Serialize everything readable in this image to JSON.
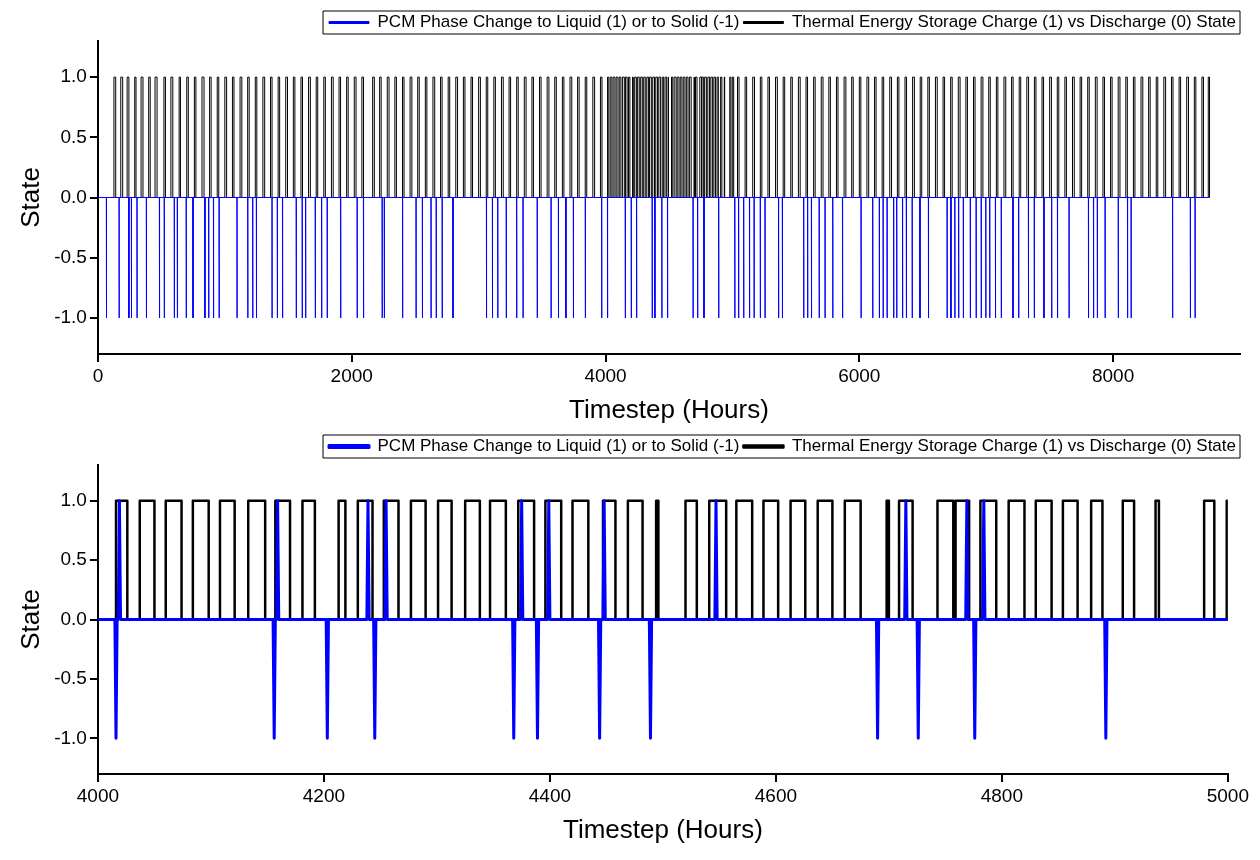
{
  "chart_data": [
    {
      "type": "line",
      "xlabel": "Timestep (Hours)",
      "ylabel": "State",
      "xlim": [
        0,
        9000
      ],
      "xticks": [
        0,
        2000,
        4000,
        6000,
        8000
      ],
      "ylim": [
        -1.3,
        1.3
      ],
      "yticks": [
        {
          "value": -1,
          "label": "-1.0"
        },
        {
          "value": -0.5,
          "label": "-0.5"
        },
        {
          "value": 0,
          "label": "0.0"
        },
        {
          "value": 0.5,
          "label": "0.5"
        },
        {
          "value": 1,
          "label": "1.0"
        }
      ],
      "legend": "top right",
      "series": [
        {
          "name": "PCM Phase Change to Liquid (1) or to Solid (-1)",
          "color": "#0000ff",
          "x": [
            0,
            66,
            67,
            68,
            166,
            167,
            168,
            243,
            244,
            245,
            263,
            264,
            265,
            307,
            308,
            309,
            381,
            382,
            383,
            484,
            485,
            486,
            522,
            523,
            524,
            601,
            602,
            603,
            625,
            626,
            627,
            695,
            696,
            697,
            748,
            749,
            750,
            842,
            843,
            844,
            872,
            873,
            874,
            910,
            911,
            912,
            954,
            955,
            956,
            1095,
            1096,
            1097,
            1180,
            1181,
            1182,
            1219,
            1220,
            1221,
            1248,
            1249,
            1250,
            1371,
            1372,
            1373,
            1413,
            1414,
            1415,
            1454,
            1455,
            1456,
            1562,
            1563,
            1564,
            1609,
            1610,
            1611,
            1636,
            1637,
            1638,
            1712,
            1713,
            1714,
            1762,
            1763,
            1764,
            1806,
            1807,
            1808,
            1912,
            1913,
            1914,
            2042,
            2043,
            2044,
            2092,
            2093,
            2094,
            2239,
            2240,
            2241,
            2256,
            2257,
            2258,
            2400,
            2401,
            2402,
            2506,
            2507,
            2508,
            2556,
            2557,
            2558,
            2624,
            2625,
            2626,
            2665,
            2666,
            2667,
            2712,
            2713,
            2714,
            2797,
            2798,
            2799,
            3061,
            3062,
            3063,
            3108,
            3109,
            3110,
            3150,
            3151,
            3152,
            3217,
            3218,
            3219,
            3299,
            3300,
            3301,
            3349,
            3350,
            3351,
            3461,
            3462,
            3463,
            3570,
            3571,
            3572,
            3628,
            3629,
            3630,
            3687,
            3688,
            3689,
            3746,
            3747,
            3748,
            3840,
            3841,
            3842,
            3969,
            3970,
            3971,
            4015,
            4016,
            4017,
            4155,
            4156,
            4157,
            4202,
            4203,
            4204,
            4244,
            4245,
            4246,
            4367,
            4368,
            4369,
            4388,
            4389,
            4390,
            4443,
            4444,
            4445,
            4488,
            4489,
            4490,
            4689,
            4690,
            4691,
            4725,
            4726,
            4727,
            4775,
            4776,
            4777,
            4891,
            4892,
            4893,
            5018,
            5019,
            5020,
            5048,
            5049,
            5050,
            5088,
            5089,
            5090,
            5134,
            5135,
            5136,
            5170,
            5171,
            5172,
            5219,
            5220,
            5221,
            5256,
            5257,
            5258,
            5363,
            5364,
            5365,
            5393,
            5394,
            5395,
            5561,
            5562,
            5563,
            5592,
            5593,
            5594,
            5622,
            5623,
            5624,
            5683,
            5684,
            5685,
            5729,
            5730,
            5731,
            5790,
            5791,
            5792,
            5867,
            5868,
            5869,
            6013,
            6014,
            6015,
            6105,
            6106,
            6107,
            6157,
            6158,
            6159,
            6187,
            6188,
            6189,
            6218,
            6219,
            6220,
            6270,
            6271,
            6272,
            6294,
            6295,
            6296,
            6340,
            6341,
            6342,
            6370,
            6371,
            6372,
            6416,
            6417,
            6418,
            6477,
            6478,
            6479,
            6544,
            6545,
            6546,
            6691,
            6692,
            6693,
            6721,
            6722,
            6723,
            6752,
            6753,
            6754,
            6782,
            6783,
            6784,
            6819,
            6820,
            6821,
            6874,
            6875,
            6876,
            6920,
            6921,
            6922,
            6960,
            6961,
            6962,
            6996,
            6997,
            6998,
            7027,
            7028,
            7029,
            7072,
            7073,
            7074,
            7118,
            7119,
            7120,
            7210,
            7211,
            7212,
            7255,
            7256,
            7257,
            7332,
            7333,
            7334,
            7378,
            7379,
            7380,
            7454,
            7455,
            7456,
            7515,
            7516,
            7517,
            7561,
            7562,
            7563,
            7652,
            7653,
            7654,
            7805,
            7806,
            7807,
            7845,
            7846,
            7847,
            7875,
            7876,
            7877,
            7936,
            7937,
            7938,
            8040,
            8041,
            8042,
            8113,
            8114,
            8115,
            8141,
            8142,
            8143,
            8468,
            8469,
            8470,
            8608,
            8609,
            8610,
            8645,
            8646,
            8647,
            8760
          ],
          "values": [
            0,
            0,
            -1,
            0,
            0,
            -1,
            0,
            0,
            -1,
            0,
            0,
            -1,
            0,
            0,
            -1,
            0,
            0,
            -1,
            0,
            0,
            -1,
            0,
            0,
            -1,
            0,
            0,
            -1,
            0,
            0,
            -1,
            0,
            0,
            -1,
            0,
            0,
            -1,
            0,
            0,
            -1,
            0,
            0,
            -1,
            0,
            0,
            -1,
            0,
            0,
            -1,
            0,
            0,
            -1,
            0,
            0,
            -1,
            0,
            0,
            -1,
            0,
            0,
            -1,
            0,
            0,
            -1,
            0,
            0,
            -1,
            0,
            0,
            -1,
            0,
            0,
            -1,
            0,
            0,
            -1,
            0,
            0,
            -1,
            0,
            0,
            -1,
            0,
            0,
            -1,
            0,
            0,
            -1,
            0,
            0,
            -1,
            0,
            0,
            -1,
            0,
            0,
            -1,
            0,
            0,
            -1,
            0,
            0,
            -1,
            0,
            0,
            -1,
            0,
            0,
            -1,
            0,
            0,
            -1,
            0,
            0,
            -1,
            0,
            0,
            -1,
            0,
            0,
            -1,
            0,
            0,
            -1,
            0,
            0,
            -1,
            0,
            0,
            -1,
            0,
            0,
            -1,
            0,
            0,
            -1,
            0,
            0,
            -1,
            0,
            0,
            -1,
            0,
            0,
            -1,
            0,
            0,
            -1,
            0,
            0,
            -1,
            0,
            0,
            -1,
            0,
            0,
            -1,
            0,
            0,
            -1,
            0,
            0,
            -1,
            0,
            0,
            -1,
            0,
            0,
            -1,
            0,
            0,
            -1,
            0,
            0,
            -1,
            0,
            0,
            -1,
            0,
            0,
            -1,
            0,
            0,
            -1,
            0,
            0,
            -1,
            0,
            0,
            -1,
            0,
            0,
            -1,
            0,
            0,
            -1,
            0,
            0,
            -1,
            0,
            0,
            -1,
            0,
            0,
            -1,
            0,
            0,
            -1,
            0,
            0,
            -1,
            0,
            0,
            -1,
            0,
            0,
            -1,
            0,
            0,
            -1,
            0,
            0,
            -1,
            0,
            0,
            -1,
            0,
            0,
            -1,
            0,
            0,
            -1,
            0,
            0,
            -1,
            0,
            0,
            -1,
            0,
            0,
            -1,
            0,
            0,
            -1,
            0,
            0,
            -1,
            0,
            0,
            -1,
            0,
            0,
            -1,
            0,
            0,
            -1,
            0,
            0,
            -1,
            0,
            0,
            -1,
            0,
            0,
            -1,
            0,
            0,
            -1,
            0,
            0,
            -1,
            0,
            0,
            -1,
            0,
            0,
            -1,
            0,
            0,
            -1,
            0,
            0,
            -1,
            0,
            0,
            -1,
            0,
            0,
            -1,
            0,
            0,
            -1,
            0,
            0,
            -1,
            0,
            0,
            -1,
            0,
            0,
            -1,
            0,
            0,
            -1,
            0,
            0,
            -1,
            0,
            0,
            -1,
            0,
            0,
            -1,
            0,
            0,
            -1,
            0,
            0,
            -1,
            0,
            0,
            -1,
            0,
            0,
            -1,
            0,
            0,
            -1,
            0,
            0,
            -1,
            0,
            0,
            -1,
            0,
            0,
            -1,
            0,
            0,
            -1,
            0,
            0,
            -1,
            0,
            0,
            -1,
            0,
            0,
            -1,
            0,
            0,
            -1,
            0,
            0,
            -1,
            0,
            0,
            -1,
            0,
            0,
            -1,
            0,
            0,
            -1,
            0,
            0,
            -1,
            0,
            0,
            -1,
            0,
            0,
            -1,
            0,
            0
          ]
        },
        {
          "name": "Thermal Energy Storage Charge (1) vs Discharge (0) State",
          "type": "step",
          "color": "#000000",
          "x": [
            0,
            126,
            140,
            180,
            195,
            230,
            244,
            290,
            300,
            340,
            355,
            400,
            412,
            450,
            466,
            520,
            532,
            575,
            590,
            640,
            650,
            700,
            712,
            760,
            772,
            820,
            836,
            880,
            892,
            940,
            952,
            1000,
            1014,
            1060,
            1072,
            1120,
            1134,
            1180,
            1192,
            1240,
            1252,
            1300,
            1314,
            1360,
            1372,
            1420,
            1432,
            1480,
            1494,
            1540,
            1552,
            1600,
            1612,
            1660,
            1674,
            1720,
            1732,
            1780,
            1792,
            1840,
            1854,
            1900,
            1912,
            1960,
            1972,
            2020,
            2034,
            2080,
            2093,
            2165,
            2178,
            2220,
            2232,
            2280,
            2294,
            2340,
            2352,
            2400,
            2412,
            2460,
            2474,
            2520,
            2532,
            2580,
            2592,
            2640,
            2654,
            2700,
            2712,
            2760,
            2772,
            2820,
            2834,
            2880,
            2892,
            2940,
            2952,
            3000,
            3014,
            3060,
            3072,
            3120,
            3132,
            3180,
            3194,
            3240,
            3252,
            3300,
            3312,
            3360,
            3374,
            3420,
            3432,
            3480,
            3492,
            3540,
            3554,
            3600,
            3612,
            3660,
            3672,
            3720,
            3734,
            3780,
            3792,
            3840,
            3852,
            3900,
            3914,
            3960,
            3972,
            4016,
            4026,
            4037,
            4050,
            4060,
            4074,
            4084,
            4098,
            4108,
            4121,
            4133,
            4148,
            4157,
            4170,
            4181,
            4192,
            4213,
            4219,
            4230,
            4243,
            4253,
            4266,
            4277,
            4290,
            4301,
            4313,
            4325,
            4338,
            4347,
            4361,
            4372,
            4386,
            4396,
            4410,
            4420,
            4434,
            4447,
            4458,
            4469,
            4482,
            4494,
            4496,
            4520,
            4530,
            4541,
            4556,
            4565,
            4579,
            4589,
            4602,
            4613,
            4626,
            4637,
            4650,
            4661,
            4675,
            4698,
            4700,
            4709,
            4721,
            4743,
            4757,
            4759,
            4771,
            4781,
            4795,
            4806,
            4820,
            4830,
            4844,
            4854,
            4867,
            4879,
            4889,
            4907,
            4917,
            4936,
            4939,
            4979,
            4988,
            4999,
            5010,
            5040,
            5052,
            5100,
            5112,
            5160,
            5174,
            5220,
            5232,
            5280,
            5292,
            5340,
            5354,
            5400,
            5412,
            5460,
            5472,
            5520,
            5534,
            5580,
            5592,
            5640,
            5652,
            5700,
            5714,
            5760,
            5772,
            5820,
            5832,
            5880,
            5894,
            5940,
            5952,
            6000,
            6012,
            6060,
            6074,
            6120,
            6132,
            6180,
            6192,
            6240,
            6254,
            6300,
            6312,
            6360,
            6372,
            6420,
            6434,
            6480,
            6492,
            6540,
            6552,
            6600,
            6614,
            6660,
            6672,
            6720,
            6732,
            6780,
            6794,
            6840,
            6852,
            6900,
            6912,
            6960,
            6974,
            7020,
            7032,
            7080,
            7092,
            7140,
            7154,
            7200,
            7212,
            7260,
            7272,
            7320,
            7334,
            7380,
            7392,
            7440,
            7452,
            7500,
            7514,
            7560,
            7572,
            7620,
            7632,
            7680,
            7694,
            7740,
            7752,
            7800,
            7812,
            7860,
            7874,
            7920,
            7932,
            7980,
            7992,
            8040,
            8054,
            8100,
            8112,
            8160,
            8172,
            8220,
            8234,
            8280,
            8292,
            8340,
            8352,
            8400,
            8414,
            8460,
            8472,
            8520,
            8532,
            8580,
            8594,
            8640,
            8652,
            8700,
            8712,
            8750,
            8760
          ],
          "values": [
            0,
            1,
            0,
            1,
            0,
            1,
            0,
            1,
            0,
            1,
            0,
            1,
            0,
            1,
            0,
            1,
            0,
            1,
            0,
            1,
            0,
            1,
            0,
            1,
            0,
            1,
            0,
            1,
            0,
            1,
            0,
            1,
            0,
            1,
            0,
            1,
            0,
            1,
            0,
            1,
            0,
            1,
            0,
            1,
            0,
            1,
            0,
            1,
            0,
            1,
            0,
            1,
            0,
            1,
            0,
            1,
            0,
            1,
            0,
            1,
            0,
            1,
            0,
            1,
            0,
            1,
            0,
            1,
            0,
            1,
            0,
            1,
            0,
            1,
            0,
            1,
            0,
            1,
            0,
            1,
            0,
            1,
            0,
            1,
            0,
            1,
            0,
            1,
            0,
            1,
            0,
            1,
            0,
            1,
            0,
            1,
            0,
            1,
            0,
            1,
            0,
            1,
            0,
            1,
            0,
            1,
            0,
            1,
            0,
            1,
            0,
            1,
            0,
            1,
            0,
            1,
            0,
            1,
            0,
            1,
            0,
            1,
            0,
            1,
            0,
            1,
            0,
            1,
            0,
            1,
            0,
            1,
            0,
            1,
            0,
            1,
            0,
            1,
            0,
            1,
            0,
            1,
            0,
            1,
            0,
            1,
            0,
            1,
            0,
            1,
            0,
            1,
            0,
            1,
            0,
            1,
            0,
            1,
            0,
            1,
            0,
            1,
            0,
            1,
            0,
            1,
            0,
            1,
            0,
            1,
            0,
            1,
            0,
            1,
            0,
            1,
            0,
            1,
            0,
            1,
            0,
            1,
            0,
            1,
            0,
            1,
            0,
            1,
            0,
            1,
            0,
            1,
            0,
            1,
            0,
            1,
            0,
            1,
            0,
            1,
            0,
            1,
            0,
            1,
            0,
            1,
            0,
            1,
            0,
            1,
            0,
            1,
            0,
            1,
            0,
            1,
            0,
            1,
            0,
            1,
            0,
            1,
            0,
            1,
            0,
            1,
            0,
            1,
            0,
            1,
            0,
            1,
            0,
            1,
            0,
            1,
            0,
            1,
            0,
            1,
            0,
            1,
            0,
            1,
            0,
            1,
            0,
            1,
            0,
            1,
            0,
            1,
            0,
            1,
            0,
            1,
            0,
            1,
            0,
            1,
            0,
            1,
            0,
            1,
            0,
            1,
            0,
            1,
            0,
            1,
            0,
            1,
            0,
            1,
            0,
            1,
            0,
            1,
            0,
            1,
            0,
            1,
            0,
            1,
            0,
            1,
            0,
            1,
            0,
            1,
            0,
            1,
            0,
            1,
            0,
            1,
            0,
            1,
            0,
            1,
            0,
            1,
            0,
            1,
            0,
            1,
            0,
            1,
            0,
            1,
            0,
            1,
            0,
            1,
            0,
            1,
            0,
            1,
            0,
            1,
            0,
            1,
            0,
            1,
            0,
            1,
            0,
            1,
            0,
            1,
            0,
            1,
            0,
            1,
            0,
            1,
            0,
            1,
            0
          ]
        }
      ]
    },
    {
      "type": "line",
      "xlabel": "Timestep (Hours)",
      "ylabel": "State",
      "xlim": [
        4000,
        5000
      ],
      "xticks": [
        4000,
        4200,
        4400,
        4600,
        4800,
        5000
      ],
      "ylim": [
        -1.3,
        1.3
      ],
      "yticks": [
        {
          "value": -1,
          "label": "-1.0"
        },
        {
          "value": -0.5,
          "label": "-0.5"
        },
        {
          "value": 0,
          "label": "0.0"
        },
        {
          "value": 0.5,
          "label": "0.5"
        },
        {
          "value": 1,
          "label": "1.0"
        }
      ],
      "legend": "top right",
      "series": [
        {
          "name": "PCM Phase Change to Liquid (1) or to Solid (-1)",
          "color": "#0000ff",
          "x": [
            4000,
            4015,
            4016,
            4017,
            4018,
            4019,
            4020,
            4155,
            4156,
            4157,
            4158,
            4159,
            4160,
            4202,
            4203,
            4204,
            4238,
            4239,
            4240,
            4244,
            4245,
            4246,
            4254,
            4255,
            4256,
            4367,
            4368,
            4369,
            4374,
            4375,
            4376,
            4388,
            4389,
            4390,
            4398,
            4399,
            4400,
            4443,
            4444,
            4445,
            4447,
            4448,
            4449,
            4488,
            4489,
            4490,
            4546,
            4547,
            4548,
            4689,
            4690,
            4691,
            4714,
            4715,
            4716,
            4725,
            4726,
            4727,
            4768,
            4769,
            4770,
            4775,
            4776,
            4777,
            4783,
            4784,
            4785,
            4891,
            4892,
            4893,
            5000
          ],
          "values": [
            0,
            0,
            -1,
            0,
            0,
            1,
            0,
            0,
            -1,
            0,
            0,
            1,
            0,
            0,
            -1,
            0,
            0,
            1,
            0,
            0,
            -1,
            0,
            0,
            1,
            0,
            0,
            -1,
            0,
            0,
            1,
            0,
            0,
            -1,
            0,
            0,
            1,
            0,
            0,
            -1,
            0,
            0,
            1,
            0,
            0,
            -1,
            0,
            0,
            1,
            0,
            0,
            -1,
            0,
            0,
            1,
            0,
            0,
            -1,
            0,
            0,
            1,
            0,
            0,
            -1,
            0,
            0,
            1,
            0,
            0,
            -1,
            0,
            0
          ]
        },
        {
          "name": "Thermal Energy Storage Charge (1) vs Discharge (0) State",
          "type": "step",
          "color": "#000000",
          "x": [
            4000,
            4016,
            4026,
            4037,
            4050,
            4060,
            4074,
            4084,
            4098,
            4108,
            4121,
            4133,
            4148,
            4157,
            4170,
            4181,
            4192,
            4213,
            4219,
            4230,
            4243,
            4253,
            4266,
            4277,
            4290,
            4301,
            4313,
            4325,
            4338,
            4347,
            4361,
            4372,
            4386,
            4396,
            4410,
            4420,
            4434,
            4447,
            4458,
            4469,
            4482,
            4494,
            4496,
            4520,
            4530,
            4541,
            4556,
            4565,
            4579,
            4589,
            4602,
            4613,
            4626,
            4637,
            4650,
            4661,
            4675,
            4698,
            4700,
            4709,
            4721,
            4743,
            4757,
            4759,
            4771,
            4781,
            4795,
            4806,
            4820,
            4830,
            4844,
            4854,
            4867,
            4879,
            4889,
            4907,
            4917,
            4936,
            4939,
            4979,
            4988,
            4999,
            5000
          ],
          "values": [
            0,
            1,
            0,
            1,
            0,
            1,
            0,
            1,
            0,
            1,
            0,
            1,
            0,
            1,
            0,
            1,
            0,
            1,
            0,
            1,
            0,
            1,
            0,
            1,
            0,
            1,
            0,
            1,
            0,
            1,
            0,
            1,
            0,
            1,
            0,
            1,
            0,
            1,
            0,
            1,
            0,
            1,
            0,
            1,
            0,
            1,
            0,
            1,
            0,
            1,
            0,
            1,
            0,
            1,
            0,
            1,
            0,
            1,
            0,
            1,
            0,
            1,
            0,
            1,
            0,
            1,
            0,
            1,
            0,
            1,
            0,
            1,
            0,
            1,
            0,
            1,
            0,
            1,
            0,
            1,
            0,
            1,
            1
          ]
        }
      ]
    }
  ]
}
